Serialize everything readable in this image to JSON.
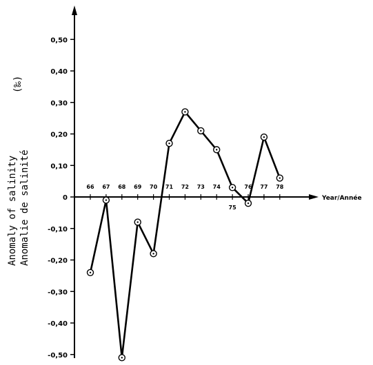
{
  "chart_data": {
    "type": "line",
    "y_title_line1": "Anomaly of salinity",
    "y_title_line2": "Anomalie de salinité",
    "y_unit": "(‰)",
    "x_title": "Year/Année",
    "ylim": [
      -0.5,
      0.55
    ],
    "y_ticks": [
      "0,50",
      "0,40",
      "0,30",
      "0,20",
      "0,10",
      "0",
      "-0,10",
      "-0,20",
      "-0,30",
      "-0,40",
      "-0,50"
    ],
    "y_tick_values": [
      0.5,
      0.4,
      0.3,
      0.2,
      0.1,
      0,
      -0.1,
      -0.2,
      -0.3,
      -0.4,
      -0.5
    ],
    "x_labels": [
      "66",
      "67",
      "68",
      "69",
      "70",
      "71",
      "72",
      "73",
      "74",
      "75",
      "76",
      "77",
      "78"
    ],
    "grid": false,
    "series": [
      {
        "x": [
          66,
          67,
          68,
          69,
          70,
          71,
          72,
          73,
          74,
          75,
          76,
          77,
          78
        ],
        "y": [
          -0.24,
          -0.01,
          -0.51,
          -0.08,
          -0.18,
          0.17,
          0.27,
          0.21,
          0.15,
          0.03,
          -0.02,
          0.19,
          0.06
        ]
      }
    ]
  }
}
